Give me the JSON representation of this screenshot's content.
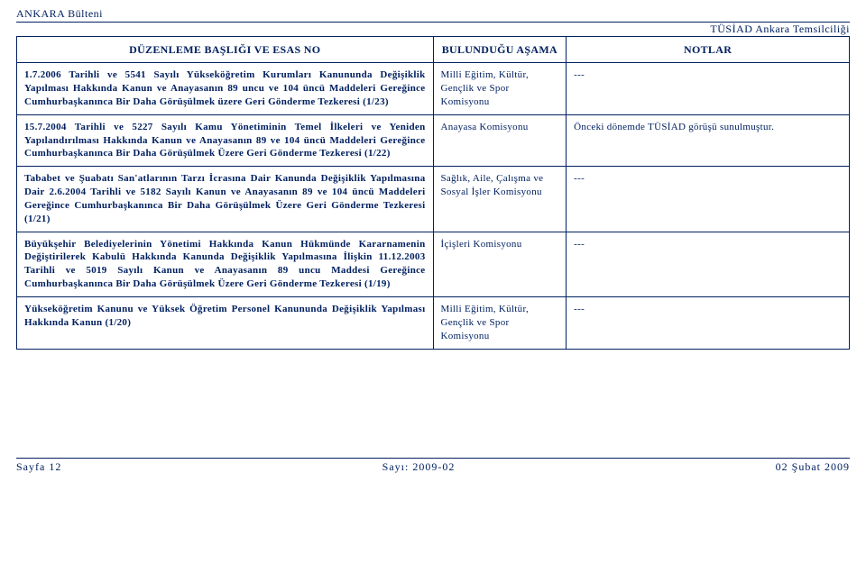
{
  "header": {
    "bulletin": "ANKARA Bülteni",
    "org": "TÜSİAD Ankara Temsilciliği"
  },
  "table": {
    "headers": {
      "col1": "DÜZENLEME BAŞLIĞI VE ESAS NO",
      "col2": "BULUNDUĞU AŞAMA",
      "col3": "NOTLAR"
    },
    "rows": [
      {
        "desc": "1.7.2006 Tarihli ve 5541 Sayılı Yükseköğretim Kurumları Kanununda Değişiklik Yapılması Hakkında Kanun ve Anayasanın 89 uncu ve 104 üncü Maddeleri Gereğince Cumhurbaşkanınca Bir Daha Görüşülmek üzere Geri Gönderme Tezkeresi (1/23)",
        "stage": "Milli Eğitim, Kültür, Gençlik ve Spor Komisyonu",
        "notes": "---"
      },
      {
        "desc": "15.7.2004 Tarihli ve 5227 Sayılı Kamu Yönetiminin Temel İlkeleri ve Yeniden Yapılandırılması Hakkında Kanun ve Anayasanın 89 ve 104 üncü Maddeleri Gereğince Cumhurbaşkanınca Bir Daha Görüşülmek Üzere Geri Gönderme Tezkeresi (1/22)",
        "stage": "Anayasa Komisyonu",
        "notes": "Önceki dönemde TÜSİAD görüşü sunulmuştur."
      },
      {
        "desc": "Tababet ve Şuabatı San'atlarının Tarzı İcrasına Dair Kanunda Değişiklik Yapılmasına Dair 2.6.2004 Tarihli ve 5182 Sayılı Kanun ve Anayasanın 89 ve 104 üncü Maddeleri Gereğince Cumhurbaşkanınca Bir Daha Görüşülmek Üzere Geri Gönderme Tezkeresi (1/21)",
        "stage": "Sağlık, Aile, Çalışma ve Sosyal İşler Komisyonu",
        "notes": "---"
      },
      {
        "desc": "Büyükşehir Belediyelerinin Yönetimi Hakkında Kanun Hükmünde Kararnamenin Değiştirilerek Kabulü Hakkında Kanunda Değişiklik Yapılmasına İlişkin 11.12.2003 Tarihli ve 5019 Sayılı Kanun ve Anayasanın 89 uncu Maddesi Gereğince Cumhurbaşkanınca Bir Daha Görüşülmek Üzere Geri Gönderme Tezkeresi (1/19)",
        "stage": "İçişleri Komisyonu",
        "notes": "---"
      },
      {
        "desc": "Yükseköğretim Kanunu ve Yüksek Öğretim Personel Kanununda Değişiklik Yapılması Hakkında Kanun (1/20)",
        "stage": "Milli Eğitim, Kültür, Gençlik ve Spor Komisyonu",
        "notes": "---"
      }
    ]
  },
  "footer": {
    "left": "Sayfa 12",
    "center": "Sayı: 2009-02",
    "right": "02 Şubat 2009"
  }
}
